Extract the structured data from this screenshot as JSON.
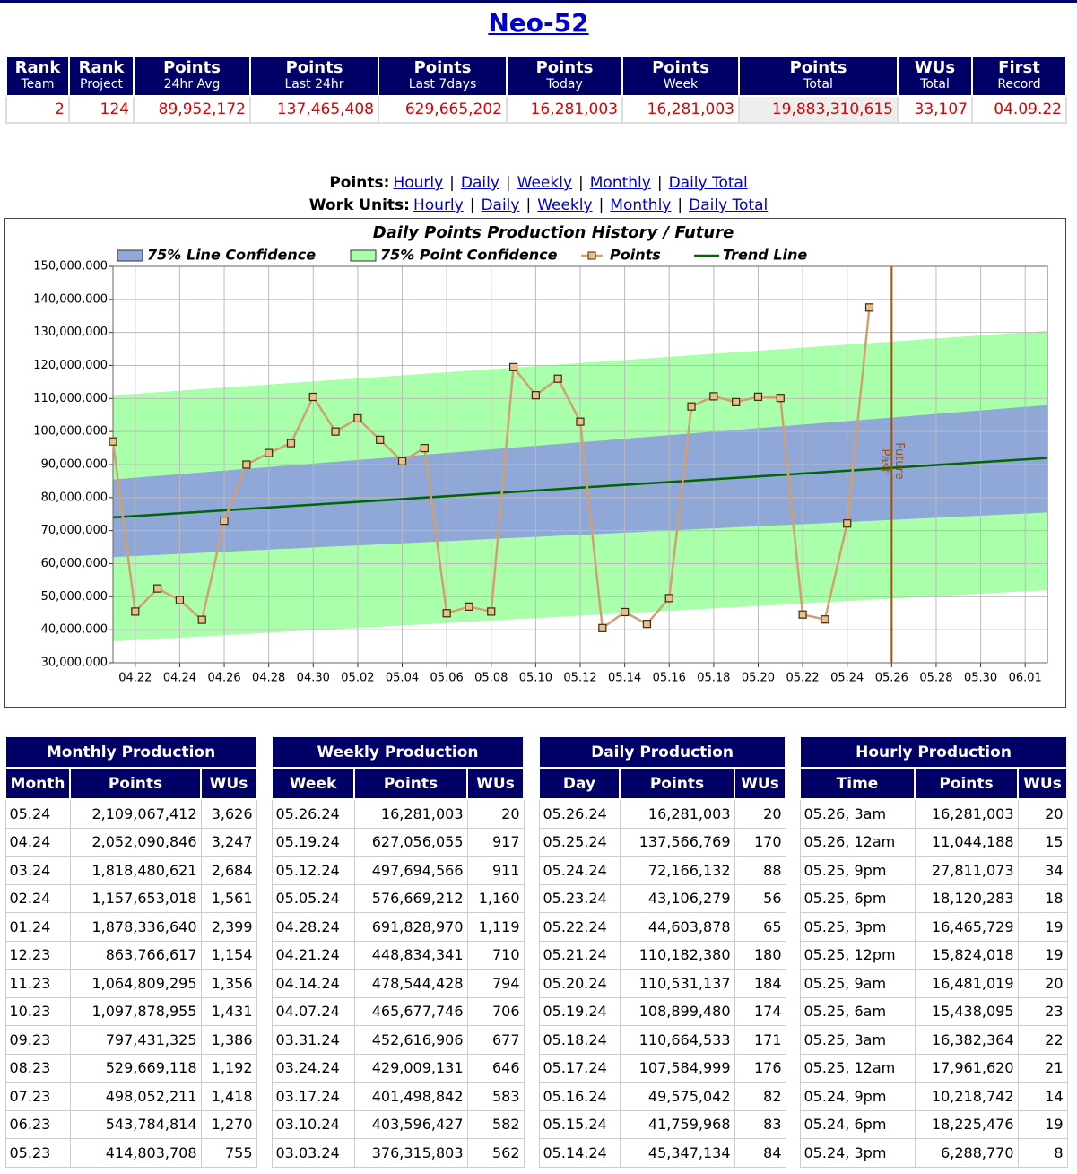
{
  "header": {
    "title": "Neo-52"
  },
  "summary": {
    "columns": [
      {
        "label": "Rank",
        "sub": "Team"
      },
      {
        "label": "Rank",
        "sub": "Project"
      },
      {
        "label": "Points",
        "sub": "24hr Avg"
      },
      {
        "label": "Points",
        "sub": "Last 24hr"
      },
      {
        "label": "Points",
        "sub": "Last 7days"
      },
      {
        "label": "Points",
        "sub": "Today"
      },
      {
        "label": "Points",
        "sub": "Week"
      },
      {
        "label": "Points",
        "sub": "Total"
      },
      {
        "label": "WUs",
        "sub": "Total"
      },
      {
        "label": "First",
        "sub": "Record"
      }
    ],
    "row": [
      "2",
      "124",
      "89,952,172",
      "137,465,408",
      "629,665,202",
      "16,281,003",
      "16,281,003",
      "19,883,310,615",
      "33,107",
      "04.09.22"
    ]
  },
  "links": {
    "separator": "|",
    "rows": [
      {
        "label": "Points:",
        "items": [
          "Hourly",
          "Daily",
          "Weekly",
          "Monthly",
          "Daily Total"
        ]
      },
      {
        "label": "Work Units:",
        "items": [
          "Hourly",
          "Daily",
          "Weekly",
          "Monthly",
          "Daily Total"
        ]
      }
    ]
  },
  "chart_data": {
    "type": "line",
    "title": "Daily Points Production History / Future",
    "x": [
      "04.21",
      "04.22",
      "04.23",
      "04.24",
      "04.25",
      "04.26",
      "04.27",
      "04.28",
      "04.29",
      "04.30",
      "05.01",
      "05.02",
      "05.03",
      "05.04",
      "05.05",
      "05.06",
      "05.07",
      "05.08",
      "05.09",
      "05.10",
      "05.11",
      "05.12",
      "05.13",
      "05.14",
      "05.15",
      "05.16",
      "05.17",
      "05.18",
      "05.19",
      "05.20",
      "05.21",
      "05.22",
      "05.23",
      "05.24",
      "05.25"
    ],
    "series": [
      {
        "name": "Points",
        "color": "#d2a070",
        "values": [
          97000000,
          45500000,
          52500000,
          49000000,
          43000000,
          73000000,
          90000000,
          93500000,
          96500000,
          110500000,
          100000000,
          104000000,
          97500000,
          91000000,
          95000000,
          45000000,
          47000000,
          45500000,
          119500000,
          111000000,
          116000000,
          103000000,
          40500000,
          45347134,
          41759968,
          49575042,
          107584999,
          110664533,
          108899480,
          110531137,
          110182380,
          44603878,
          43106279,
          72166132,
          137566769
        ]
      }
    ],
    "trend": {
      "name": "Trend Line",
      "color": "#006600",
      "x": [
        "04.21",
        "06.02"
      ],
      "values": [
        74000000,
        92000000
      ]
    },
    "bands": [
      {
        "name": "75% Point Confidence",
        "color": "#aaffaa",
        "x": [
          "04.21",
          "06.02"
        ],
        "lower": [
          36500000,
          52000000
        ],
        "upper": [
          111000000,
          130500000
        ]
      },
      {
        "name": "75% Line Confidence",
        "color": "#8fa8d8",
        "x": [
          "04.21",
          "06.02"
        ],
        "lower": [
          62000000,
          75500000
        ],
        "upper": [
          85500000,
          108000000
        ]
      }
    ],
    "divider": {
      "x": "05.26",
      "labels": [
        "Past",
        "Future"
      ],
      "color": "#a0520a"
    },
    "xlim": [
      "04.21",
      "06.02"
    ],
    "xticks": [
      "04.22",
      "04.24",
      "04.26",
      "04.28",
      "04.30",
      "05.02",
      "05.04",
      "05.06",
      "05.08",
      "05.10",
      "05.12",
      "05.14",
      "05.16",
      "05.18",
      "05.20",
      "05.22",
      "05.24",
      "05.26",
      "05.28",
      "05.30",
      "06.01"
    ],
    "ylim": [
      30000000,
      150000000
    ],
    "yticks": [
      {
        "value": 30000000,
        "label": "30,000,000"
      },
      {
        "value": 40000000,
        "label": "40,000,000"
      },
      {
        "value": 50000000,
        "label": "50,000,000"
      },
      {
        "value": 60000000,
        "label": "60,000,000"
      },
      {
        "value": 70000000,
        "label": "70,000,000"
      },
      {
        "value": 80000000,
        "label": "80,000,000"
      },
      {
        "value": 90000000,
        "label": "90,000,000"
      },
      {
        "value": 100000000,
        "label": "100,000,000"
      },
      {
        "value": 110000000,
        "label": "110,000,000"
      },
      {
        "value": 120000000,
        "label": "120,000,000"
      },
      {
        "value": 130000000,
        "label": "130,000,000"
      },
      {
        "value": 140000000,
        "label": "140,000,000"
      },
      {
        "value": 150000000,
        "label": "150,000,000"
      }
    ],
    "grid": true
  },
  "tables": [
    {
      "title": "Monthly Production",
      "columns": [
        "Month",
        "Points",
        "WUs"
      ],
      "rows": [
        [
          "05.24",
          "2,109,067,412",
          "3,626"
        ],
        [
          "04.24",
          "2,052,090,846",
          "3,247"
        ],
        [
          "03.24",
          "1,818,480,621",
          "2,684"
        ],
        [
          "02.24",
          "1,157,653,018",
          "1,561"
        ],
        [
          "01.24",
          "1,878,336,640",
          "2,399"
        ],
        [
          "12.23",
          "863,766,617",
          "1,154"
        ],
        [
          "11.23",
          "1,064,809,295",
          "1,356"
        ],
        [
          "10.23",
          "1,097,878,955",
          "1,431"
        ],
        [
          "09.23",
          "797,431,325",
          "1,386"
        ],
        [
          "08.23",
          "529,669,118",
          "1,192"
        ],
        [
          "07.23",
          "498,052,211",
          "1,418"
        ],
        [
          "06.23",
          "543,784,814",
          "1,270"
        ],
        [
          "05.23",
          "414,803,708",
          "755"
        ]
      ]
    },
    {
      "title": "Weekly Production",
      "columns": [
        "Week",
        "Points",
        "WUs"
      ],
      "rows": [
        [
          "05.26.24",
          "16,281,003",
          "20"
        ],
        [
          "05.19.24",
          "627,056,055",
          "917"
        ],
        [
          "05.12.24",
          "497,694,566",
          "911"
        ],
        [
          "05.05.24",
          "576,669,212",
          "1,160"
        ],
        [
          "04.28.24",
          "691,828,970",
          "1,119"
        ],
        [
          "04.21.24",
          "448,834,341",
          "710"
        ],
        [
          "04.14.24",
          "478,544,428",
          "794"
        ],
        [
          "04.07.24",
          "465,677,746",
          "706"
        ],
        [
          "03.31.24",
          "452,616,906",
          "677"
        ],
        [
          "03.24.24",
          "429,009,131",
          "646"
        ],
        [
          "03.17.24",
          "401,498,842",
          "583"
        ],
        [
          "03.10.24",
          "403,596,427",
          "582"
        ],
        [
          "03.03.24",
          "376,315,803",
          "562"
        ]
      ]
    },
    {
      "title": "Daily Production",
      "columns": [
        "Day",
        "Points",
        "WUs"
      ],
      "rows": [
        [
          "05.26.24",
          "16,281,003",
          "20"
        ],
        [
          "05.25.24",
          "137,566,769",
          "170"
        ],
        [
          "05.24.24",
          "72,166,132",
          "88"
        ],
        [
          "05.23.24",
          "43,106,279",
          "56"
        ],
        [
          "05.22.24",
          "44,603,878",
          "65"
        ],
        [
          "05.21.24",
          "110,182,380",
          "180"
        ],
        [
          "05.20.24",
          "110,531,137",
          "184"
        ],
        [
          "05.19.24",
          "108,899,480",
          "174"
        ],
        [
          "05.18.24",
          "110,664,533",
          "171"
        ],
        [
          "05.17.24",
          "107,584,999",
          "176"
        ],
        [
          "05.16.24",
          "49,575,042",
          "82"
        ],
        [
          "05.15.24",
          "41,759,968",
          "83"
        ],
        [
          "05.14.24",
          "45,347,134",
          "84"
        ]
      ]
    },
    {
      "title": "Hourly Production",
      "columns": [
        "Time",
        "Points",
        "WUs"
      ],
      "rows": [
        [
          "05.26, 3am",
          "16,281,003",
          "20"
        ],
        [
          "05.26, 12am",
          "11,044,188",
          "15"
        ],
        [
          "05.25, 9pm",
          "27,811,073",
          "34"
        ],
        [
          "05.25, 6pm",
          "18,120,283",
          "18"
        ],
        [
          "05.25, 3pm",
          "16,465,729",
          "19"
        ],
        [
          "05.25, 12pm",
          "15,824,018",
          "19"
        ],
        [
          "05.25, 9am",
          "16,481,019",
          "20"
        ],
        [
          "05.25, 6am",
          "15,438,095",
          "23"
        ],
        [
          "05.25, 3am",
          "16,382,364",
          "22"
        ],
        [
          "05.25, 12am",
          "17,961,620",
          "21"
        ],
        [
          "05.24, 9pm",
          "10,218,742",
          "14"
        ],
        [
          "05.24, 6pm",
          "18,225,476",
          "19"
        ],
        [
          "05.24, 3pm",
          "6,288,770",
          "8"
        ]
      ]
    }
  ]
}
